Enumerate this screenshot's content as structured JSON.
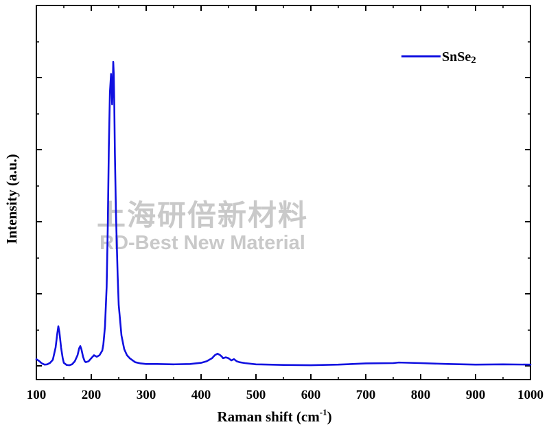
{
  "chart_data": {
    "type": "line",
    "xlabel": "Raman shift (cm",
    "xlabel_sup": "-1",
    "xlabel_end": ")",
    "ylabel": "Intensity (a.u.)",
    "xlim": [
      100,
      1000
    ],
    "ylim": [
      0,
      100
    ],
    "x_ticks": [
      "100",
      "200",
      "300",
      "400",
      "500",
      "600",
      "700",
      "800",
      "900",
      "1000"
    ],
    "y_tick_labels": "none",
    "grid": false,
    "legend_placement": "top-right",
    "series": [
      {
        "name": "SnSe2",
        "name_main": "SnSe",
        "name_sub": "2",
        "color": "#1010e0",
        "x": [
          100,
          105,
          110,
          115,
          120,
          125,
          130,
          135,
          138,
          140,
          142,
          145,
          148,
          150,
          155,
          160,
          165,
          170,
          175,
          178,
          180,
          182,
          185,
          188,
          190,
          195,
          200,
          205,
          210,
          215,
          220,
          222,
          225,
          228,
          230,
          232,
          234,
          236,
          237,
          238,
          239,
          240,
          241,
          242,
          243,
          245,
          248,
          250,
          255,
          260,
          265,
          270,
          280,
          290,
          300,
          320,
          350,
          380,
          400,
          410,
          420,
          425,
          430,
          435,
          438,
          440,
          445,
          450,
          455,
          460,
          465,
          470,
          480,
          500,
          550,
          600,
          650,
          700,
          750,
          760,
          800,
          850,
          900,
          950,
          1000
        ],
        "y": [
          2.2,
          1.6,
          0.8,
          0.4,
          0.5,
          1.0,
          2.0,
          6.0,
          10.5,
          13.0,
          11.0,
          6.0,
          2.5,
          1.0,
          0.3,
          0.2,
          0.5,
          1.5,
          3.5,
          5.8,
          6.5,
          5.5,
          3.0,
          1.5,
          1.2,
          1.5,
          2.5,
          3.5,
          3.0,
          3.5,
          5.0,
          7.0,
          13.0,
          26.0,
          45.0,
          72.0,
          90.0,
          96.0,
          91.0,
          86.0,
          91.0,
          100.0,
          96.0,
          85.0,
          70.0,
          50.0,
          30.0,
          20.0,
          10.0,
          5.5,
          3.5,
          2.5,
          1.2,
          0.8,
          0.6,
          0.6,
          0.5,
          0.6,
          1.0,
          1.5,
          2.5,
          3.5,
          4.0,
          3.5,
          3.0,
          2.5,
          2.8,
          2.5,
          1.8,
          2.2,
          1.5,
          1.2,
          0.9,
          0.5,
          0.3,
          0.2,
          0.4,
          0.8,
          0.9,
          1.1,
          0.9,
          0.6,
          0.4,
          0.5,
          0.4
        ]
      }
    ]
  },
  "watermark": {
    "line1": "上海研倍新材料",
    "line2": "RD-Best New Material"
  }
}
